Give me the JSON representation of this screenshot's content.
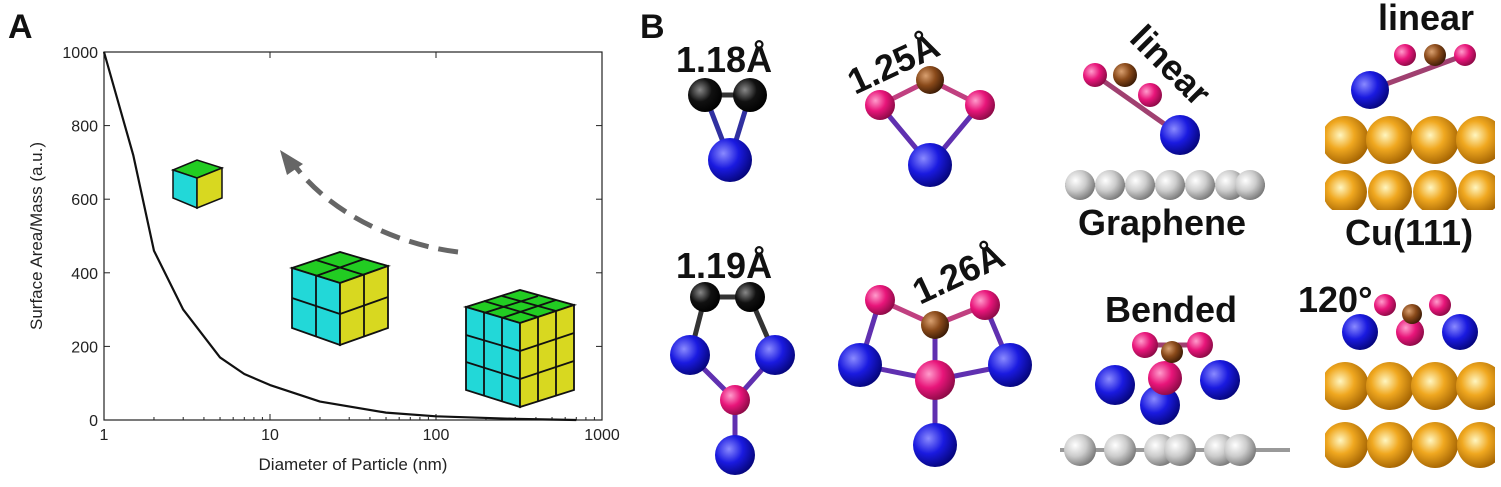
{
  "panel_labels": [
    "A",
    "B"
  ],
  "chart_data": {
    "type": "line",
    "x_label": "Diameter of Particle (nm)",
    "y_label": "Surface Area/Mass (a.u.)",
    "x": [
      1,
      1.5,
      2,
      3,
      5,
      7,
      10,
      20,
      50,
      100,
      300,
      700
    ],
    "series": [
      {
        "name": "Surface Area/Mass",
        "color": "#111111",
        "values": [
          1000,
          720,
          460,
          300,
          170,
          125,
          95,
          50,
          20,
          10,
          3,
          0
        ]
      }
    ],
    "xlim": [
      1,
      1000
    ],
    "xticks": [
      1,
      10,
      100,
      1000
    ],
    "xscale": "log",
    "ylim": [
      0,
      1000
    ],
    "yticks": [
      0,
      200,
      400,
      600,
      800,
      1000
    ]
  },
  "structures": {
    "bond_lengths": [
      "1.18Å",
      "1.25Å",
      "1.19Å",
      "1.26Å"
    ],
    "labels": [
      "linear",
      "linear",
      "Graphene",
      "Cu(111)",
      "Bended",
      "120°"
    ]
  }
}
